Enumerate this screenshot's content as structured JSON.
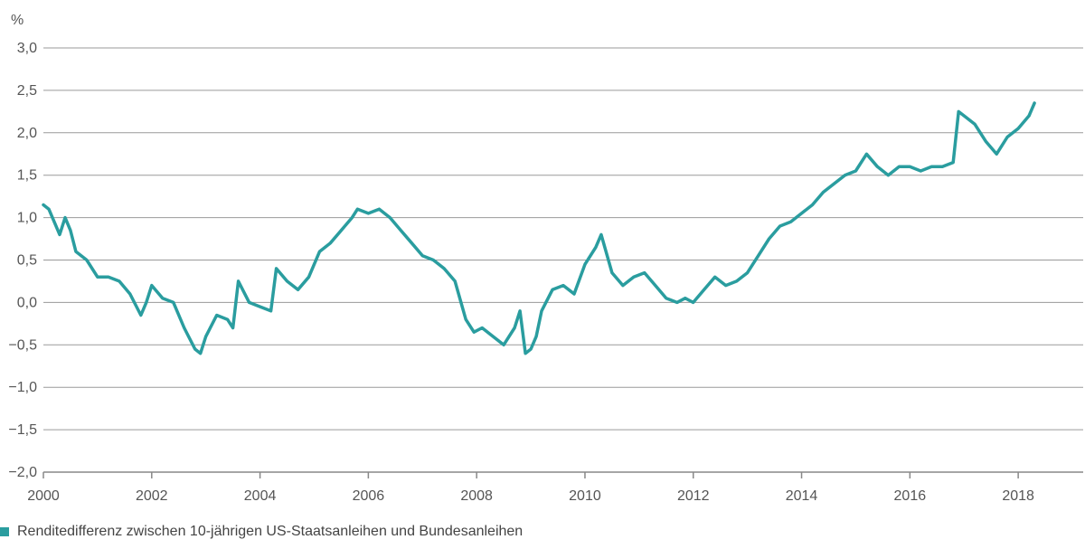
{
  "colors": {
    "series": "#2a9d9f",
    "grid": "#9a9a9a",
    "axis": "#888888",
    "text": "#555555"
  },
  "chart_data": {
    "type": "line",
    "title": "",
    "xlabel": "",
    "ylabel": "%",
    "xlim": [
      2000,
      2019.2
    ],
    "ylim": [
      -2.0,
      3.0
    ],
    "grid": true,
    "legend_position": "bottom-left",
    "y_ticks": [
      -2.0,
      -1.5,
      -1.0,
      -0.5,
      0.0,
      0.5,
      1.0,
      1.5,
      2.0,
      2.5,
      3.0
    ],
    "y_tick_labels": [
      "−2,0",
      "−1,5",
      "−1,0",
      "−0,5",
      "0,0",
      "0,5",
      "1,0",
      "1,5",
      "2,0",
      "2,5",
      "3,0"
    ],
    "x_ticks": [
      2000,
      2002,
      2004,
      2006,
      2008,
      2010,
      2012,
      2014,
      2016,
      2018
    ],
    "x_tick_labels": [
      "2000",
      "2002",
      "2004",
      "2006",
      "2008",
      "2010",
      "2012",
      "2014",
      "2016",
      "2018"
    ],
    "series": [
      {
        "name": "Renditedifferenz zwischen 10-jährigen US-Staatsanleihen und Bundesanleihen",
        "x": [
          2000.0,
          2000.1,
          2000.2,
          2000.3,
          2000.4,
          2000.5,
          2000.6,
          2000.8,
          2001.0,
          2001.2,
          2001.4,
          2001.6,
          2001.8,
          2001.9,
          2002.0,
          2002.2,
          2002.4,
          2002.6,
          2002.8,
          2002.9,
          2003.0,
          2003.2,
          2003.4,
          2003.5,
          2003.6,
          2003.8,
          2004.0,
          2004.2,
          2004.3,
          2004.5,
          2004.7,
          2004.9,
          2005.1,
          2005.3,
          2005.5,
          2005.7,
          2005.8,
          2006.0,
          2006.2,
          2006.4,
          2006.6,
          2006.8,
          2007.0,
          2007.2,
          2007.4,
          2007.6,
          2007.8,
          2007.95,
          2008.1,
          2008.3,
          2008.5,
          2008.7,
          2008.8,
          2008.9,
          2009.0,
          2009.1,
          2009.2,
          2009.4,
          2009.6,
          2009.8,
          2010.0,
          2010.2,
          2010.3,
          2010.5,
          2010.7,
          2010.9,
          2011.1,
          2011.3,
          2011.5,
          2011.7,
          2011.85,
          2012.0,
          2012.2,
          2012.4,
          2012.6,
          2012.8,
          2013.0,
          2013.2,
          2013.4,
          2013.6,
          2013.8,
          2014.0,
          2014.2,
          2014.4,
          2014.6,
          2014.8,
          2015.0,
          2015.2,
          2015.4,
          2015.6,
          2015.8,
          2016.0,
          2016.2,
          2016.4,
          2016.6,
          2016.8,
          2016.9,
          2017.0,
          2017.2,
          2017.4,
          2017.6,
          2017.8,
          2018.0,
          2018.2,
          2018.3
        ],
        "y": [
          1.15,
          1.1,
          0.95,
          0.8,
          1.0,
          0.85,
          0.6,
          0.5,
          0.3,
          0.3,
          0.25,
          0.1,
          -0.15,
          0.0,
          0.2,
          0.05,
          0.0,
          -0.3,
          -0.55,
          -0.6,
          -0.4,
          -0.15,
          -0.2,
          -0.3,
          0.25,
          0.0,
          -0.05,
          -0.1,
          0.4,
          0.25,
          0.15,
          0.3,
          0.6,
          0.7,
          0.85,
          1.0,
          1.1,
          1.05,
          1.1,
          1.0,
          0.85,
          0.7,
          0.55,
          0.5,
          0.4,
          0.25,
          -0.2,
          -0.35,
          -0.3,
          -0.4,
          -0.5,
          -0.3,
          -0.1,
          -0.6,
          -0.55,
          -0.4,
          -0.1,
          0.15,
          0.2,
          0.1,
          0.45,
          0.65,
          0.8,
          0.35,
          0.2,
          0.3,
          0.35,
          0.2,
          0.05,
          0.0,
          0.05,
          0.0,
          0.15,
          0.3,
          0.2,
          0.25,
          0.35,
          0.55,
          0.75,
          0.9,
          0.95,
          1.05,
          1.15,
          1.3,
          1.4,
          1.5,
          1.55,
          1.75,
          1.6,
          1.5,
          1.6,
          1.6,
          1.55,
          1.6,
          1.6,
          1.65,
          2.25,
          2.2,
          2.1,
          1.9,
          1.75,
          1.95,
          2.05,
          2.2,
          2.35
        ]
      }
    ]
  },
  "legend": {
    "label": "Renditedifferenz zwischen 10-jährigen US-Staatsanleihen und Bundesanleihen"
  }
}
